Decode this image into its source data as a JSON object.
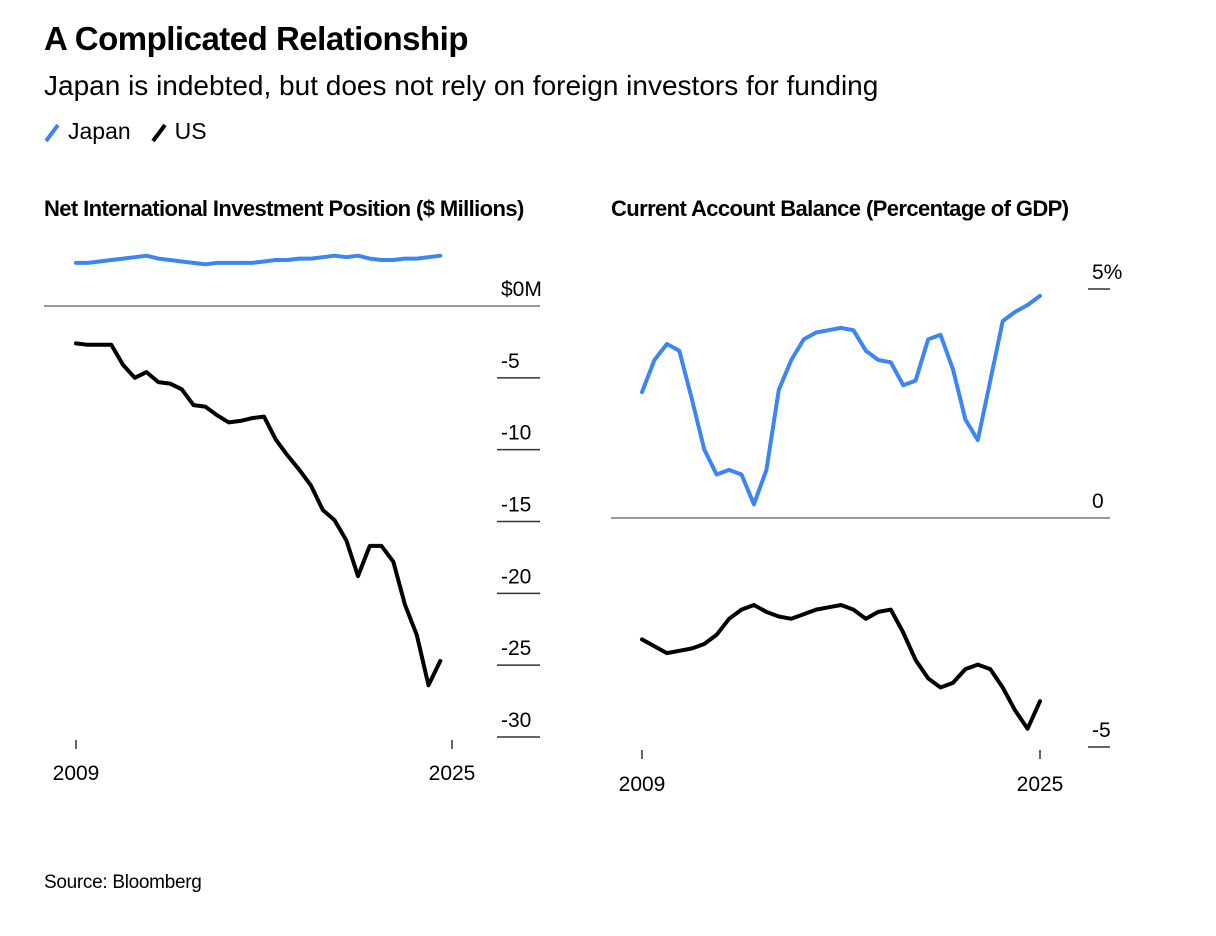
{
  "title": "A Complicated Relationship",
  "subtitle": "Japan is indebted, but does not rely on foreign investors for funding",
  "source": "Source: Bloomberg",
  "chart_data": [
    {
      "type": "line",
      "title": "Net International Investment Position ($ Millions)",
      "x": [
        2009,
        2009.5,
        2010,
        2010.5,
        2011,
        2011.5,
        2012,
        2012.5,
        2013,
        2013.5,
        2014,
        2014.5,
        2015,
        2015.5,
        2016,
        2016.5,
        2017,
        2017.5,
        2018,
        2018.5,
        2019,
        2019.5,
        2020,
        2020.5,
        2021,
        2021.5,
        2022,
        2022.5,
        2023,
        2023.5,
        2024,
        2024.5
      ],
      "series": [
        {
          "name": "Japan",
          "color": "#3d85f5",
          "values": [
            3.0,
            3.0,
            3.1,
            3.2,
            3.3,
            3.4,
            3.5,
            3.3,
            3.2,
            3.1,
            3.0,
            2.9,
            3.0,
            3.0,
            3.0,
            3.0,
            3.1,
            3.2,
            3.2,
            3.3,
            3.3,
            3.4,
            3.5,
            3.4,
            3.5,
            3.3,
            3.2,
            3.2,
            3.3,
            3.3,
            3.4,
            3.5
          ]
        },
        {
          "name": "US",
          "color": "#000000",
          "values": [
            -2.6,
            -2.7,
            -2.7,
            -2.7,
            -4.1,
            -5.0,
            -4.6,
            -5.3,
            -5.4,
            -5.8,
            -6.9,
            -7.0,
            -7.6,
            -8.1,
            -8.0,
            -7.8,
            -7.7,
            -9.3,
            -10.4,
            -11.4,
            -12.5,
            -14.2,
            -14.9,
            -16.3,
            -18.8,
            -16.7,
            -16.7,
            -17.8,
            -20.8,
            -22.9,
            -26.4,
            -24.7
          ]
        }
      ],
      "xlim": [
        2009,
        2025
      ],
      "xticks": [
        2009,
        2025
      ],
      "ylim": [
        -30,
        0
      ],
      "yticks": [
        {
          "value": 0,
          "label": "$0M"
        },
        -5,
        -10,
        -15,
        -20,
        -25,
        -30
      ]
    },
    {
      "type": "line",
      "title": "Current Account Balance (Percentage of GDP)",
      "x": [
        2009,
        2009.5,
        2010,
        2010.5,
        2011,
        2011.5,
        2012,
        2012.5,
        2013,
        2013.5,
        2014,
        2014.5,
        2015,
        2015.5,
        2016,
        2016.5,
        2017,
        2017.5,
        2018,
        2018.5,
        2019,
        2019.5,
        2020,
        2020.5,
        2021,
        2021.5,
        2022,
        2022.5,
        2023,
        2023.5,
        2024,
        2024.5,
        2025
      ],
      "series": [
        {
          "name": "Japan",
          "color": "#3d85f5",
          "values": [
            2.75,
            3.45,
            3.8,
            3.65,
            2.6,
            1.5,
            0.95,
            1.05,
            0.95,
            0.3,
            1.05,
            2.8,
            3.45,
            3.9,
            4.05,
            4.1,
            4.15,
            4.1,
            3.65,
            3.45,
            3.4,
            2.9,
            3.0,
            3.9,
            4.0,
            3.25,
            2.15,
            1.7,
            3.0,
            4.3,
            4.5,
            4.65,
            4.85
          ]
        },
        {
          "name": "US",
          "color": "#000000",
          "values": [
            -2.65,
            -2.8,
            -2.95,
            -2.9,
            -2.85,
            -2.75,
            -2.55,
            -2.2,
            -2.0,
            -1.9,
            -2.05,
            -2.15,
            -2.2,
            -2.1,
            -2.0,
            -1.95,
            -1.9,
            -2.0,
            -2.2,
            -2.05,
            -2.0,
            -2.5,
            -3.1,
            -3.5,
            -3.7,
            -3.6,
            -3.3,
            -3.2,
            -3.3,
            -3.7,
            -4.2,
            -4.6,
            -4.0
          ]
        }
      ],
      "xlim": [
        2009,
        2025
      ],
      "xticks": [
        2009,
        2025
      ],
      "ylim": [
        -5,
        5
      ],
      "yticks": [
        {
          "value": 5,
          "label": "5%"
        },
        0,
        -5
      ]
    }
  ]
}
